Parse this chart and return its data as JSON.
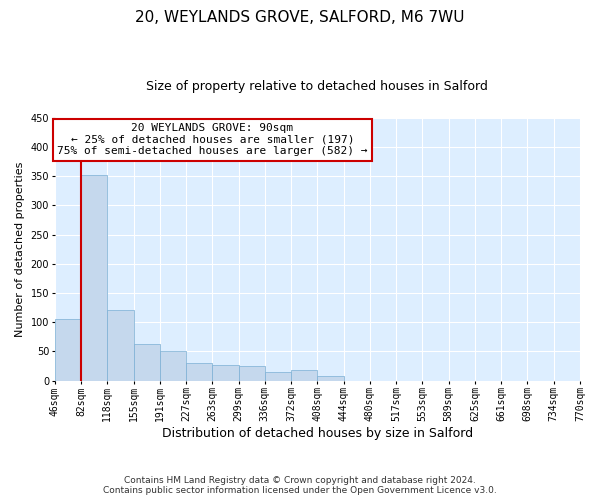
{
  "title": "20, WEYLANDS GROVE, SALFORD, M6 7WU",
  "subtitle": "Size of property relative to detached houses in Salford",
  "xlabel": "Distribution of detached houses by size in Salford",
  "ylabel": "Number of detached properties",
  "bin_labels": [
    "46sqm",
    "82sqm",
    "118sqm",
    "155sqm",
    "191sqm",
    "227sqm",
    "263sqm",
    "299sqm",
    "336sqm",
    "372sqm",
    "408sqm",
    "444sqm",
    "480sqm",
    "517sqm",
    "553sqm",
    "589sqm",
    "625sqm",
    "661sqm",
    "698sqm",
    "734sqm",
    "770sqm"
  ],
  "bar_heights": [
    105,
    352,
    121,
    62,
    50,
    30,
    26,
    25,
    14,
    18,
    8,
    0,
    0,
    0,
    0,
    0,
    0,
    0,
    0,
    0,
    2
  ],
  "bar_color": "#c5d8ed",
  "bar_edge_color": "#7aafd4",
  "marker_value_label": "20 WEYLANDS GROVE: 90sqm",
  "annotation_line1": "← 25% of detached houses are smaller (197)",
  "annotation_line2": "75% of semi-detached houses are larger (582) →",
  "annotation_box_color": "#ffffff",
  "annotation_box_edge_color": "#cc0000",
  "ylim": [
    0,
    450
  ],
  "yticks": [
    0,
    50,
    100,
    150,
    200,
    250,
    300,
    350,
    400,
    450
  ],
  "footer_line1": "Contains HM Land Registry data © Crown copyright and database right 2024.",
  "footer_line2": "Contains public sector information licensed under the Open Government Licence v3.0.",
  "fig_bg_color": "#ffffff",
  "plot_bg_color": "#ddeeff",
  "grid_color": "#ffffff",
  "marker_line_color": "#cc0000",
  "title_fontsize": 11,
  "subtitle_fontsize": 9,
  "ylabel_fontsize": 8,
  "xlabel_fontsize": 9,
  "tick_fontsize": 7,
  "annotation_fontsize": 8,
  "footer_fontsize": 6.5
}
